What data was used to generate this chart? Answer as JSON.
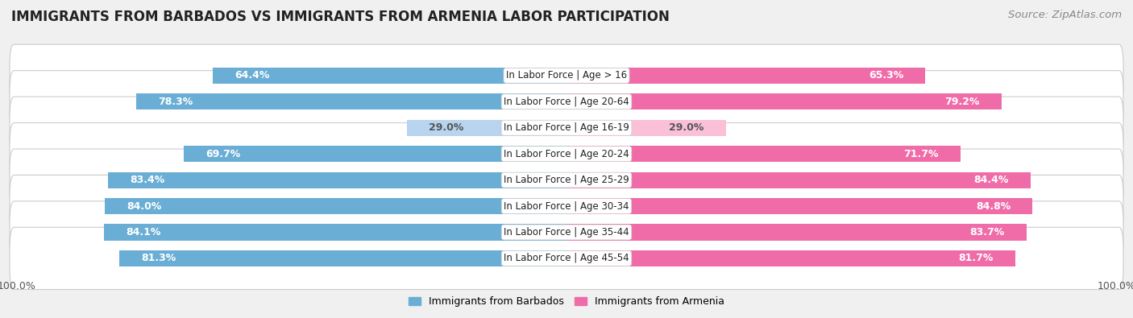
{
  "title": "IMMIGRANTS FROM BARBADOS VS IMMIGRANTS FROM ARMENIA LABOR PARTICIPATION",
  "source": "Source: ZipAtlas.com",
  "categories": [
    "In Labor Force | Age > 16",
    "In Labor Force | Age 20-64",
    "In Labor Force | Age 16-19",
    "In Labor Force | Age 20-24",
    "In Labor Force | Age 25-29",
    "In Labor Force | Age 30-34",
    "In Labor Force | Age 35-44",
    "In Labor Force | Age 45-54"
  ],
  "barbados_values": [
    64.4,
    78.3,
    29.0,
    69.7,
    83.4,
    84.0,
    84.1,
    81.3
  ],
  "armenia_values": [
    65.3,
    79.2,
    29.0,
    71.7,
    84.4,
    84.8,
    83.7,
    81.7
  ],
  "barbados_color": "#6AAED6",
  "armenia_color": "#F06CA8",
  "barbados_color_light": "#B8D4EE",
  "armenia_color_light": "#F9C0D8",
  "bg_color": "#F0F0F0",
  "row_bg_color": "#E8E8E8",
  "row_white_color": "#FFFFFF",
  "label_white": "#FFFFFF",
  "label_dark": "#555555",
  "bar_height": 0.62,
  "max_value": 100.0,
  "title_fontsize": 12,
  "source_fontsize": 9.5,
  "tick_fontsize": 9,
  "legend_fontsize": 9,
  "value_fontsize": 9,
  "category_fontsize": 8.5
}
